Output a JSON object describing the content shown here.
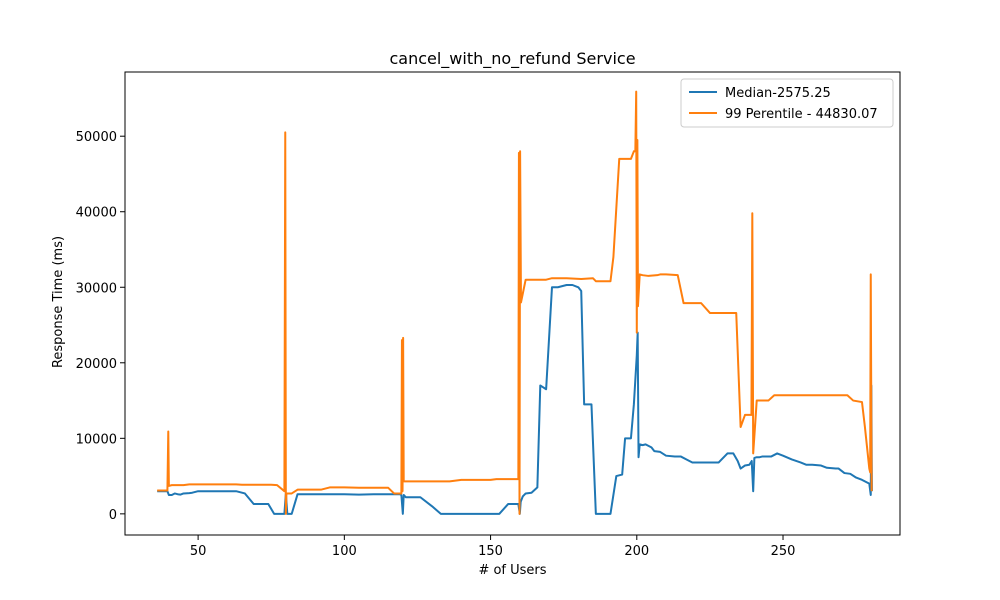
{
  "chart_data": {
    "type": "line",
    "title": "cancel_with_no_refund Service",
    "xlabel": "# of Users",
    "ylabel": "Response Time (ms)",
    "xlim": [
      25,
      290
    ],
    "ylim": [
      -2800,
      58500
    ],
    "xticks": [
      50,
      100,
      150,
      200,
      250
    ],
    "yticks": [
      0,
      10000,
      20000,
      30000,
      40000,
      50000
    ],
    "grid": false,
    "legend_position": "top-right",
    "series": [
      {
        "name": "Median-2575.25",
        "color": "#1f77b4",
        "points": [
          [
            36,
            3000
          ],
          [
            39.5,
            3000
          ],
          [
            40,
            2500
          ],
          [
            41,
            2500
          ],
          [
            42,
            2700
          ],
          [
            43,
            2600
          ],
          [
            44,
            2550
          ],
          [
            45,
            2700
          ],
          [
            47,
            2750
          ],
          [
            48,
            2800
          ],
          [
            50,
            3000
          ],
          [
            55,
            3000
          ],
          [
            60,
            3000
          ],
          [
            63,
            3000
          ],
          [
            66,
            2700
          ],
          [
            69,
            1300
          ],
          [
            72,
            1300
          ],
          [
            74,
            1300
          ],
          [
            76,
            0
          ],
          [
            78,
            0
          ],
          [
            79.5,
            0
          ],
          [
            80,
            2700
          ],
          [
            80.5,
            0
          ],
          [
            82,
            0
          ],
          [
            84,
            2600
          ],
          [
            90,
            2600
          ],
          [
            95,
            2600
          ],
          [
            100,
            2600
          ],
          [
            105,
            2550
          ],
          [
            110,
            2600
          ],
          [
            115,
            2600
          ],
          [
            119,
            2600
          ],
          [
            119.5,
            2500
          ],
          [
            120,
            0
          ],
          [
            120.3,
            2500
          ],
          [
            121,
            2200
          ],
          [
            126,
            2200
          ],
          [
            130,
            1000
          ],
          [
            133,
            0
          ],
          [
            140,
            0
          ],
          [
            145,
            0
          ],
          [
            150,
            0
          ],
          [
            153,
            0
          ],
          [
            156,
            1300
          ],
          [
            159.5,
            1300
          ],
          [
            160,
            0
          ],
          [
            160.3,
            1600
          ],
          [
            161,
            2300
          ],
          [
            162,
            2700
          ],
          [
            164,
            2800
          ],
          [
            166,
            3500
          ],
          [
            167,
            17000
          ],
          [
            169,
            16500
          ],
          [
            171,
            30000
          ],
          [
            173,
            30000
          ],
          [
            175,
            30200
          ],
          [
            176,
            30300
          ],
          [
            178,
            30300
          ],
          [
            180,
            30000
          ],
          [
            181,
            29500
          ],
          [
            182,
            14500
          ],
          [
            184.5,
            14500
          ],
          [
            186,
            0
          ],
          [
            188,
            0
          ],
          [
            191,
            0
          ],
          [
            193,
            5000
          ],
          [
            195,
            5200
          ],
          [
            196,
            10000
          ],
          [
            198,
            10000
          ],
          [
            199,
            14500
          ],
          [
            200,
            21000
          ],
          [
            200.3,
            24000
          ],
          [
            200.6,
            7500
          ],
          [
            201,
            9200
          ],
          [
            202,
            9100
          ],
          [
            203,
            9200
          ],
          [
            205,
            8800
          ],
          [
            206,
            8300
          ],
          [
            208,
            8200
          ],
          [
            210,
            7700
          ],
          [
            213,
            7600
          ],
          [
            215,
            7600
          ],
          [
            217,
            7200
          ],
          [
            219,
            6800
          ],
          [
            222,
            6800
          ],
          [
            228,
            6800
          ],
          [
            231,
            8000
          ],
          [
            233,
            8000
          ],
          [
            234.5,
            7000
          ],
          [
            235.5,
            6000
          ],
          [
            237,
            6400
          ],
          [
            238.5,
            6500
          ],
          [
            239.3,
            7000
          ],
          [
            239.8,
            3000
          ],
          [
            240.2,
            7400
          ],
          [
            241,
            7500
          ],
          [
            242,
            7500
          ],
          [
            243,
            7600
          ],
          [
            246,
            7600
          ],
          [
            248,
            8000
          ],
          [
            250,
            7700
          ],
          [
            253,
            7200
          ],
          [
            256,
            6800
          ],
          [
            258,
            6500
          ],
          [
            260,
            6500
          ],
          [
            263,
            6400
          ],
          [
            265,
            6100
          ],
          [
            268,
            6000
          ],
          [
            269,
            6000
          ],
          [
            271,
            5400
          ],
          [
            273,
            5300
          ],
          [
            275,
            4800
          ],
          [
            277,
            4500
          ],
          [
            279.5,
            4000
          ],
          [
            280,
            2500
          ],
          [
            280.2,
            17000
          ],
          [
            280.4,
            3000
          ]
        ]
      },
      {
        "name": "99 Perentile - 44830.07",
        "color": "#ff7f0e",
        "points": [
          [
            36,
            3100
          ],
          [
            39.5,
            3100
          ],
          [
            39.8,
            10900
          ],
          [
            40,
            3700
          ],
          [
            41,
            3800
          ],
          [
            45,
            3800
          ],
          [
            47,
            3900
          ],
          [
            50,
            3900
          ],
          [
            55,
            3900
          ],
          [
            60,
            3900
          ],
          [
            63,
            3900
          ],
          [
            65,
            3850
          ],
          [
            70,
            3850
          ],
          [
            75,
            3850
          ],
          [
            77,
            3800
          ],
          [
            79.5,
            3000
          ],
          [
            79.8,
            50500
          ],
          [
            80,
            0
          ],
          [
            80.2,
            2700
          ],
          [
            82,
            2700
          ],
          [
            84,
            3200
          ],
          [
            87,
            3200
          ],
          [
            92,
            3200
          ],
          [
            95,
            3500
          ],
          [
            100,
            3500
          ],
          [
            105,
            3450
          ],
          [
            110,
            3450
          ],
          [
            115,
            3450
          ],
          [
            117,
            2700
          ],
          [
            119.5,
            2700
          ],
          [
            119.7,
            23000
          ],
          [
            119.9,
            3000
          ],
          [
            120.1,
            23300
          ],
          [
            120.3,
            4300
          ],
          [
            123,
            4300
          ],
          [
            128,
            4300
          ],
          [
            133,
            4300
          ],
          [
            136,
            4300
          ],
          [
            140,
            4500
          ],
          [
            145,
            4500
          ],
          [
            150,
            4500
          ],
          [
            152,
            4600
          ],
          [
            155,
            4600
          ],
          [
            159.5,
            4600
          ],
          [
            159.7,
            47800
          ],
          [
            159.9,
            0
          ],
          [
            160.1,
            48000
          ],
          [
            160.4,
            28000
          ],
          [
            162,
            31000
          ],
          [
            165,
            31000
          ],
          [
            169,
            31000
          ],
          [
            171,
            31200
          ],
          [
            176,
            31200
          ],
          [
            181,
            31100
          ],
          [
            185,
            31200
          ],
          [
            186,
            30800
          ],
          [
            188,
            30800
          ],
          [
            191,
            30800
          ],
          [
            192,
            34000
          ],
          [
            194,
            47000
          ],
          [
            198,
            47000
          ],
          [
            199,
            48000
          ],
          [
            199.5,
            48000
          ],
          [
            199.8,
            55900
          ],
          [
            200,
            24000
          ],
          [
            200.2,
            49500
          ],
          [
            200.4,
            27500
          ],
          [
            201,
            31700
          ],
          [
            202,
            31600
          ],
          [
            204,
            31500
          ],
          [
            207,
            31600
          ],
          [
            208,
            31700
          ],
          [
            210,
            31700
          ],
          [
            214,
            31600
          ],
          [
            216,
            27900
          ],
          [
            222,
            27900
          ],
          [
            225,
            26600
          ],
          [
            230,
            26600
          ],
          [
            234,
            26600
          ],
          [
            235.5,
            11500
          ],
          [
            237,
            13100
          ],
          [
            238.5,
            13100
          ],
          [
            239.2,
            13100
          ],
          [
            239.5,
            39800
          ],
          [
            239.8,
            8000
          ],
          [
            240.5,
            12000
          ],
          [
            241,
            15000
          ],
          [
            245,
            15000
          ],
          [
            247,
            15700
          ],
          [
            250,
            15700
          ],
          [
            260,
            15700
          ],
          [
            270,
            15700
          ],
          [
            272,
            15700
          ],
          [
            274,
            15000
          ],
          [
            277,
            14800
          ],
          [
            278,
            11500
          ],
          [
            279.5,
            6000
          ],
          [
            279.8,
            5500
          ],
          [
            280,
            31700
          ],
          [
            280.3,
            3000
          ]
        ]
      }
    ]
  }
}
